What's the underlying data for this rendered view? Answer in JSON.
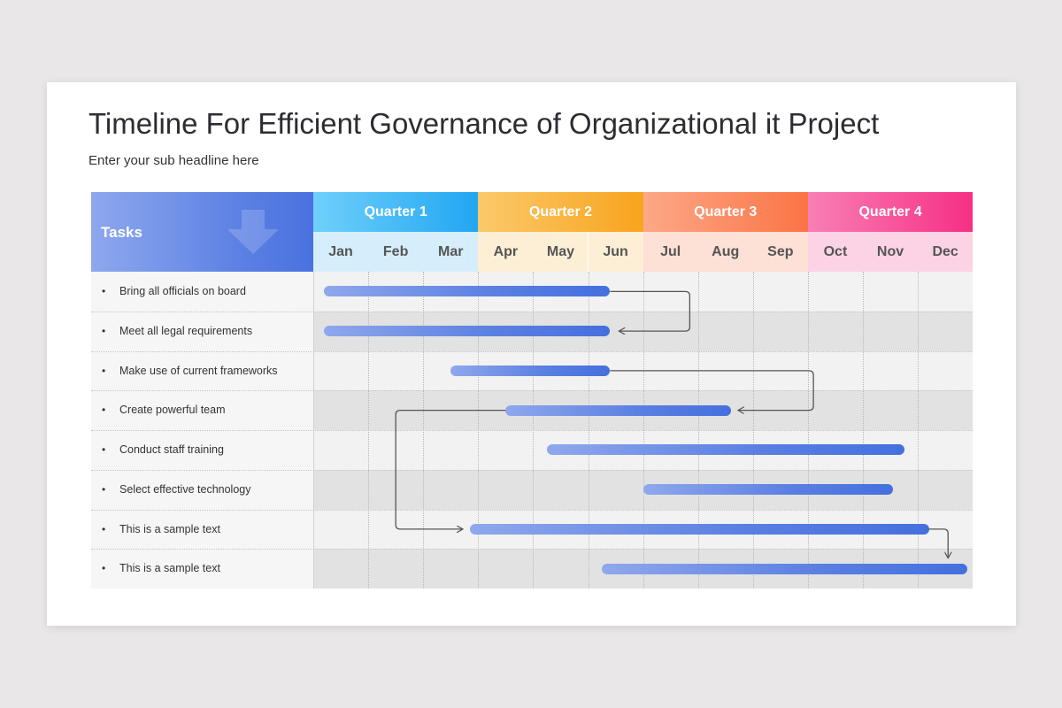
{
  "header": {
    "title": "Timeline For Efficient Governance of Organizational it Project",
    "subtitle": "Enter your sub headline here"
  },
  "table": {
    "tasks_label": "Tasks",
    "quarters": [
      {
        "label": "Quarter 1",
        "color_from": "#6fd0fb",
        "color_to": "#22a6f2",
        "month_bg": "#d6eefb"
      },
      {
        "label": "Quarter 2",
        "color_from": "#fbc96a",
        "color_to": "#f8a41e",
        "month_bg": "#fdefd6"
      },
      {
        "label": "Quarter 3",
        "color_from": "#fca888",
        "color_to": "#fb7445",
        "month_bg": "#fde0d6"
      },
      {
        "label": "Quarter 4",
        "color_from": "#f87fb5",
        "color_to": "#f72f85",
        "month_bg": "#fbd3e4"
      }
    ],
    "months": [
      "Jan",
      "Feb",
      "Mar",
      "Apr",
      "May",
      "Jun",
      "Jul",
      "Aug",
      "Sep",
      "Oct",
      "Nov",
      "Dec"
    ],
    "tasks": [
      {
        "label": "Bring all officials on board",
        "start": 0.2,
        "end": 5.4
      },
      {
        "label": "Meet all legal requirements",
        "start": 0.2,
        "end": 5.4
      },
      {
        "label": "Make use of current frameworks",
        "start": 2.5,
        "end": 5.4
      },
      {
        "label": "Create powerful team",
        "start": 3.5,
        "end": 7.6
      },
      {
        "label": "Conduct staff training",
        "start": 4.25,
        "end": 10.75
      },
      {
        "label": "Select effective technology",
        "start": 6.0,
        "end": 10.55
      },
      {
        "label": "This is a sample text",
        "start": 2.85,
        "end": 11.2
      },
      {
        "label": "This is a sample text",
        "start": 5.25,
        "end": 11.9
      }
    ]
  }
}
